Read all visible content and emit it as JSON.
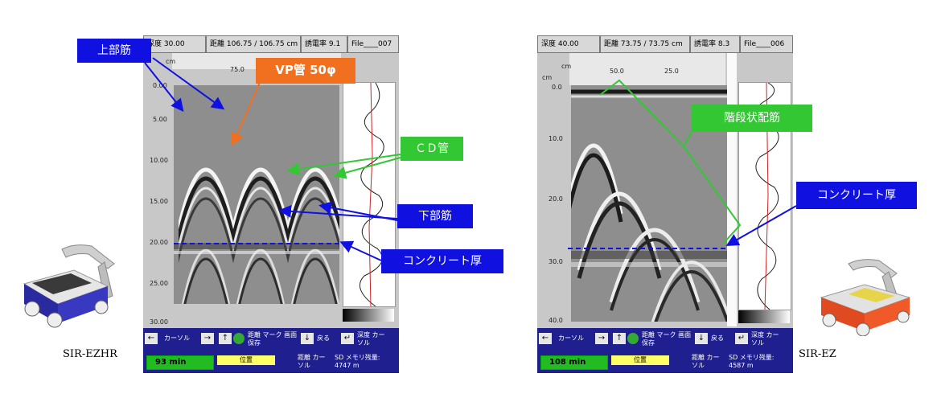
{
  "left_panel": {
    "header": {
      "depth": "深度 30.00",
      "distance": "距離 106.75 / 106.75 cm",
      "dielectric": "誘電率 9.1",
      "file": "File____007"
    },
    "unit_top": "cm",
    "top_tick": "75.0",
    "depth_ticks": [
      "0.00",
      "5.00",
      "10.00",
      "15.00",
      "20.00",
      "25.00",
      "30.00"
    ],
    "toolbar": {
      "cursor": "カーソル",
      "save": "距離 マーク 画面保存",
      "back": "戻る",
      "depth_cursor": "深度 カーソル",
      "battery": "93 min",
      "position": "位置",
      "dist_cursor": "距離 カーソル",
      "memory": "SD メモリ残量: 4747 m"
    }
  },
  "right_panel": {
    "header": {
      "depth": "深度 40.00",
      "distance": "距離 73.75 / 73.75 cm",
      "dielectric": "誘電率 8.3",
      "file": "File____006"
    },
    "unit_top": "cm",
    "unit_side": "cm",
    "top_ticks": [
      "50.0",
      "25.0"
    ],
    "depth_ticks": [
      "0.0",
      "10.0",
      "20.0",
      "30.0",
      "40.0"
    ],
    "toolbar": {
      "cursor": "カーソル",
      "save": "距離 マーク 画面保存",
      "back": "戻る",
      "depth_cursor": "深度 カーソル",
      "battery": "108 min",
      "position": "位置",
      "dist_cursor": "距離 カーソル",
      "memory": "SD メモリ残量: 4587 m"
    }
  },
  "callouts": {
    "upper_rebar": "上部筋",
    "vp_pipe": "VP管 50φ",
    "cd_pipe": "ＣＤ管",
    "lower_rebar": "下部筋",
    "concrete_left": "コンクリート厚",
    "stepped_rebar": "階段状配筋",
    "concrete_right": "コンクリート厚"
  },
  "devices": {
    "left": "SIR-EZHR",
    "right": "SIR-EZ"
  },
  "colors": {
    "callout_blue": "#1010e0",
    "callout_green": "#33c833",
    "callout_orange": "#f07020",
    "toolbar": "#1f1f8f"
  }
}
